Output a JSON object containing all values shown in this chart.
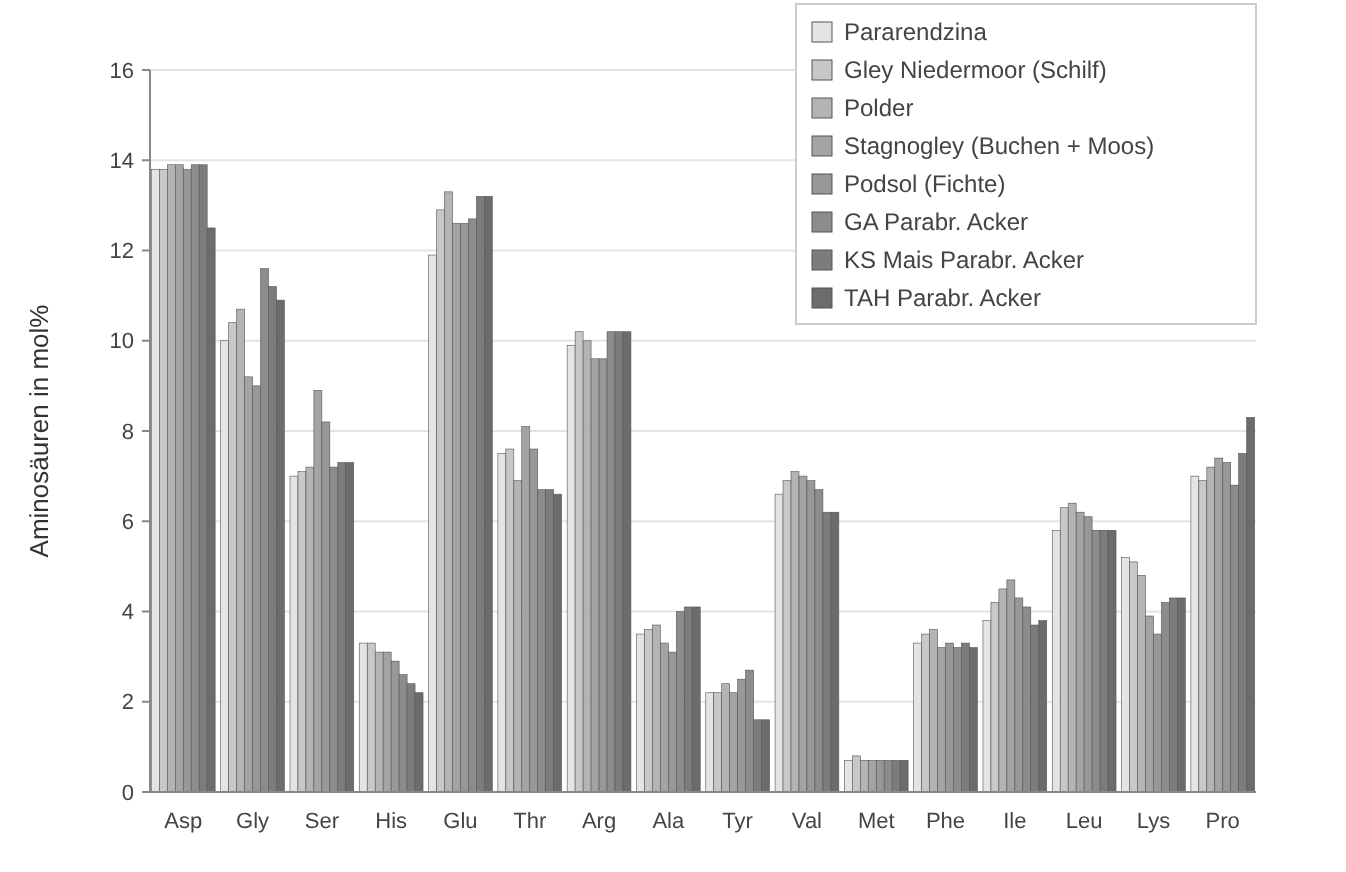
{
  "chart_data": {
    "type": "bar",
    "ylabel": "Aminosäuren in mol%",
    "categories": [
      "Asp",
      "Gly",
      "Ser",
      "His",
      "Glu",
      "Thr",
      "Arg",
      "Ala",
      "Tyr",
      "Val",
      "Met",
      "Phe",
      "Ile",
      "Leu",
      "Lys",
      "Pro"
    ],
    "series": [
      {
        "name": "Pararendzina",
        "color": "#e4e4e4",
        "values": [
          13.8,
          10.0,
          7.0,
          3.3,
          11.9,
          7.5,
          9.9,
          3.5,
          2.2,
          6.6,
          0.7,
          3.3,
          3.8,
          5.8,
          5.2,
          7.0
        ]
      },
      {
        "name": "Gley Niedermoor (Schilf)",
        "color": "#c8c8c8",
        "values": [
          13.8,
          10.4,
          7.1,
          3.3,
          12.9,
          7.6,
          10.2,
          3.6,
          2.2,
          6.9,
          0.8,
          3.5,
          4.2,
          6.3,
          5.1,
          6.9
        ]
      },
      {
        "name": "Polder",
        "color": "#b4b4b4",
        "values": [
          13.9,
          10.7,
          7.2,
          3.1,
          13.3,
          6.9,
          10.0,
          3.7,
          2.4,
          7.1,
          0.7,
          3.6,
          4.5,
          6.4,
          4.8,
          7.2
        ]
      },
      {
        "name": "Stagnogley (Buchen + Moos)",
        "color": "#a4a4a4",
        "values": [
          13.9,
          9.2,
          8.9,
          3.1,
          12.6,
          8.1,
          9.6,
          3.3,
          2.2,
          7.0,
          0.7,
          3.2,
          4.7,
          6.2,
          3.9,
          7.4
        ]
      },
      {
        "name": "Podsol (Fichte)",
        "color": "#989898",
        "values": [
          13.8,
          9.0,
          8.2,
          2.9,
          12.6,
          7.6,
          9.6,
          3.1,
          2.5,
          6.9,
          0.7,
          3.3,
          4.3,
          6.1,
          3.5,
          7.3
        ]
      },
      {
        "name": "GA Parabr. Acker",
        "color": "#8c8c8c",
        "values": [
          13.9,
          11.6,
          7.2,
          2.6,
          12.7,
          6.7,
          10.2,
          4.0,
          2.7,
          6.7,
          0.7,
          3.2,
          4.1,
          5.8,
          4.2,
          6.8
        ]
      },
      {
        "name": "KS Mais Parabr. Acker",
        "color": "#7c7c7c",
        "values": [
          13.9,
          11.2,
          7.3,
          2.4,
          13.2,
          6.7,
          10.2,
          4.1,
          1.6,
          6.2,
          0.7,
          3.3,
          3.7,
          5.8,
          4.3,
          7.5
        ]
      },
      {
        "name": "TAH Parabr. Acker",
        "color": "#6c6c6c",
        "values": [
          12.5,
          10.9,
          7.3,
          2.2,
          13.2,
          6.6,
          10.2,
          4.1,
          1.6,
          6.2,
          0.7,
          3.2,
          3.8,
          5.8,
          4.3,
          8.3
        ]
      }
    ],
    "ylim": [
      0,
      16
    ],
    "yticks": [
      0,
      2,
      4,
      6,
      8,
      10,
      12,
      14,
      16
    ],
    "grid": "y",
    "legend": "top right"
  }
}
